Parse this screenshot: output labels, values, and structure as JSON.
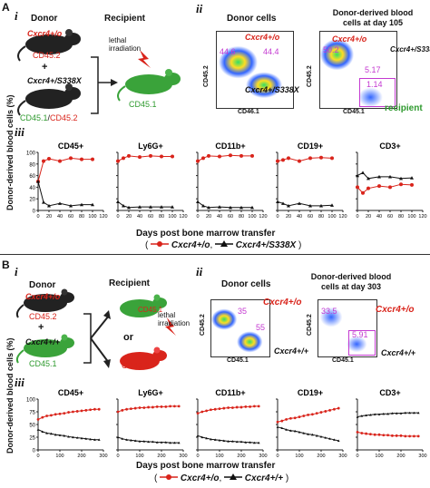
{
  "panelA": {
    "letter": "A",
    "sub_i": "i",
    "sub_ii": "ii",
    "sub_iii": "iii",
    "donor_title": "Donor",
    "recipient_title": "Recipient",
    "donor1_genotype": "Cxcr4+/o",
    "donor1_marker": "CD45.2",
    "plus": "+",
    "donor2_genotype": "Cxcr4+/S338X",
    "donor2_marker_a": "CD45.1",
    "donor2_marker_sep": "/",
    "donor2_marker_b": "CD45.2",
    "lethal1": "lethal",
    "lethal2": "irradiation",
    "recipient_marker": "CD45.1",
    "facs1_title": "Donor cells",
    "facs2_title_1": "Donor-derived blood",
    "facs2_title_2": "cells at day 105",
    "facs1_gate_a": "44.6",
    "facs1_gate_b": "44.4",
    "facs1_label_top": "Cxcr4+/o",
    "facs1_label_bottom": "Cxcr4+/S338X",
    "facs2_gate_a": "50.2",
    "facs2_gate_b": "5.17",
    "facs2_gate_c": "1.14",
    "facs2_label_top": "Cxcr4+/o",
    "facs2_label_right": "Cxcr4+/S338X",
    "facs2_label_recipient": "recipient",
    "facs_ylabel": "CD45.2",
    "facs_xlabel": "CD46.1",
    "facs2_xlabel": "CD45.1",
    "ylabel_1": "Donor-derived",
    "ylabel_2": "blood cells (%)",
    "xlabel": "Days post bone marrow transfer",
    "legend_open": "(",
    "legend_sep": ",",
    "legend_close": ")",
    "legend_red": "Cxcr4+/o",
    "legend_black": "Cxcr4+/S338X"
  },
  "panelB": {
    "letter": "B",
    "sub_i": "i",
    "sub_ii": "ii",
    "sub_iii": "iii",
    "donor_title": "Donor",
    "recipient_title": "Recipient",
    "donor1_genotype": "Cxcr4+/o",
    "donor1_marker": "CD45.2",
    "plus": "+",
    "donor2_genotype": "Cxcr4+/+",
    "donor2_marker": "CD45.1",
    "or": "or",
    "rec1_marker": "CD45.1",
    "rec2_marker": "CD45.2",
    "lethal1": "lethal",
    "lethal2": "irradiation",
    "facs1_title": "Donor cells",
    "facs2_title_1": "Donor-derived blood",
    "facs2_title_2": "cells at day 303",
    "facs1_label_top": "Cxcr4+/o",
    "facs1_label_bottom": "Cxcr4+/+",
    "facs1_gate_a": "35",
    "facs1_gate_b": "55",
    "facs2_gate_a": "33.5",
    "facs2_gate_b": "5.91",
    "facs2_label_top": "Cxcr4+/o",
    "facs2_label_bottom": "Cxcr4+/+",
    "facs_ylabel": "CD45.2",
    "facs_xlabel": "CD45.1",
    "ylabel_1": "Donor-derived",
    "ylabel_2": "blood cells (%)",
    "xlabel": "Days post bone marrow transfer",
    "legend_open": "(",
    "legend_sep": ",",
    "legend_close": ")",
    "legend_red": "Cxcr4+/o",
    "legend_black": "Cxcr4+/+"
  },
  "colors": {
    "red": "#d9241b",
    "black": "#111111",
    "green": "#2e9a2e",
    "magenta": "#c43ad1"
  },
  "chart_data": [
    {
      "type": "line",
      "panel": "A-iii",
      "title": "CD45+",
      "x": [
        0,
        10,
        20,
        40,
        60,
        80,
        100
      ],
      "series": [
        {
          "name": "Cxcr4+/o",
          "values": [
            50,
            85,
            89,
            85,
            90,
            88,
            88
          ]
        },
        {
          "name": "Cxcr4+/S338X",
          "values": [
            50,
            14,
            8,
            12,
            8,
            10,
            10
          ]
        }
      ],
      "xlim": [
        0,
        120
      ],
      "ylim": [
        0,
        100
      ],
      "xticks": [
        0,
        20,
        40,
        60,
        80,
        100,
        120
      ],
      "yticks": [
        0,
        20,
        40,
        60,
        80,
        100
      ],
      "ylabel": "Donor-derived blood cells (%)"
    },
    {
      "type": "line",
      "panel": "A-iii",
      "title": "Ly6G+",
      "x": [
        0,
        10,
        20,
        40,
        60,
        80,
        100
      ],
      "series": [
        {
          "name": "Cxcr4+/o",
          "values": [
            85,
            90,
            94,
            92,
            94,
            93,
            93
          ]
        },
        {
          "name": "Cxcr4+/S338X",
          "values": [
            15,
            8,
            5,
            6,
            6,
            6,
            6
          ]
        }
      ],
      "xlim": [
        0,
        120
      ],
      "ylim": [
        0,
        100
      ]
    },
    {
      "type": "line",
      "panel": "A-iii",
      "title": "CD11b+",
      "x": [
        0,
        10,
        20,
        40,
        60,
        80,
        100
      ],
      "series": [
        {
          "name": "Cxcr4+/o",
          "values": [
            85,
            90,
            94,
            93,
            95,
            94,
            94
          ]
        },
        {
          "name": "Cxcr4+/S338X",
          "values": [
            15,
            8,
            5,
            6,
            5,
            5,
            5
          ]
        }
      ],
      "xlim": [
        0,
        120
      ],
      "ylim": [
        0,
        100
      ]
    },
    {
      "type": "line",
      "panel": "A-iii",
      "title": "CD19+",
      "x": [
        0,
        10,
        20,
        40,
        60,
        80,
        100
      ],
      "series": [
        {
          "name": "Cxcr4+/o",
          "values": [
            85,
            87,
            90,
            85,
            90,
            91,
            90
          ]
        },
        {
          "name": "Cxcr4+/S338X",
          "values": [
            15,
            12,
            8,
            12,
            8,
            8,
            9
          ]
        }
      ],
      "xlim": [
        0,
        120
      ],
      "ylim": [
        0,
        100
      ]
    },
    {
      "type": "line",
      "panel": "A-iii",
      "title": "CD3+",
      "x": [
        0,
        10,
        20,
        40,
        60,
        80,
        100
      ],
      "series": [
        {
          "name": "Cxcr4+/o",
          "values": [
            40,
            30,
            38,
            42,
            40,
            45,
            44
          ]
        },
        {
          "name": "Cxcr4+/S338X",
          "values": [
            60,
            65,
            55,
            58,
            58,
            55,
            56
          ]
        }
      ],
      "xlim": [
        0,
        120
      ],
      "ylim": [
        0,
        100
      ]
    },
    {
      "type": "line",
      "panel": "B-iii",
      "title": "CD45+",
      "x": [
        0,
        20,
        40,
        60,
        80,
        100,
        120,
        140,
        160,
        180,
        200,
        220,
        240,
        260,
        280
      ],
      "series": [
        {
          "name": "Cxcr4+/o",
          "values": [
            60,
            64,
            67,
            68,
            70,
            71,
            72,
            74,
            75,
            76,
            77,
            78,
            79,
            80,
            80
          ]
        },
        {
          "name": "Cxcr4+/+",
          "values": [
            40,
            36,
            33,
            32,
            30,
            29,
            28,
            26,
            25,
            24,
            23,
            22,
            21,
            20,
            20
          ]
        }
      ],
      "xlim": [
        0,
        300
      ],
      "ylim": [
        0,
        100
      ],
      "xticks": [
        0,
        100,
        200,
        300
      ],
      "yticks": [
        0,
        25,
        50,
        75,
        100
      ],
      "ylabel": "Donor-derived blood cells (%)"
    },
    {
      "type": "line",
      "panel": "B-iii",
      "title": "Ly6G+",
      "x": [
        0,
        20,
        40,
        60,
        80,
        100,
        120,
        140,
        160,
        180,
        200,
        220,
        240,
        260,
        280
      ],
      "series": [
        {
          "name": "Cxcr4+/o",
          "values": [
            75,
            78,
            80,
            81,
            82,
            83,
            83,
            84,
            84,
            85,
            85,
            85,
            86,
            86,
            86
          ]
        },
        {
          "name": "Cxcr4+/+",
          "values": [
            25,
            22,
            20,
            19,
            18,
            17,
            17,
            16,
            16,
            15,
            15,
            15,
            14,
            14,
            14
          ]
        }
      ],
      "xlim": [
        0,
        300
      ],
      "ylim": [
        0,
        100
      ]
    },
    {
      "type": "line",
      "panel": "B-iii",
      "title": "CD11b+",
      "x": [
        0,
        20,
        40,
        60,
        80,
        100,
        120,
        140,
        160,
        180,
        200,
        220,
        240,
        260,
        280
      ],
      "series": [
        {
          "name": "Cxcr4+/o",
          "values": [
            72,
            75,
            77,
            79,
            80,
            81,
            82,
            83,
            83,
            84,
            84,
            85,
            85,
            86,
            86
          ]
        },
        {
          "name": "Cxcr4+/+",
          "values": [
            28,
            25,
            23,
            21,
            20,
            19,
            18,
            17,
            17,
            16,
            16,
            15,
            15,
            14,
            14
          ]
        }
      ],
      "xlim": [
        0,
        300
      ],
      "ylim": [
        0,
        100
      ]
    },
    {
      "type": "line",
      "panel": "B-iii",
      "title": "CD19+",
      "x": [
        0,
        20,
        40,
        60,
        80,
        100,
        120,
        140,
        160,
        180,
        200,
        220,
        240,
        260,
        280
      ],
      "series": [
        {
          "name": "Cxcr4+/o",
          "values": [
            55,
            57,
            60,
            62,
            63,
            65,
            67,
            69,
            70,
            72,
            74,
            76,
            78,
            80,
            82
          ]
        },
        {
          "name": "Cxcr4+/+",
          "values": [
            45,
            43,
            40,
            38,
            37,
            35,
            33,
            31,
            30,
            28,
            26,
            24,
            22,
            20,
            18
          ]
        }
      ],
      "xlim": [
        0,
        300
      ],
      "ylim": [
        0,
        100
      ]
    },
    {
      "type": "line",
      "panel": "B-iii",
      "title": "CD3+",
      "x": [
        0,
        20,
        40,
        60,
        80,
        100,
        120,
        140,
        160,
        180,
        200,
        220,
        240,
        260,
        280
      ],
      "series": [
        {
          "name": "Cxcr4+/o",
          "values": [
            35,
            33,
            32,
            31,
            30,
            30,
            29,
            29,
            28,
            28,
            28,
            27,
            27,
            27,
            27
          ]
        },
        {
          "name": "Cxcr4+/+",
          "values": [
            65,
            67,
            68,
            69,
            70,
            70,
            71,
            71,
            72,
            72,
            72,
            73,
            73,
            73,
            73
          ]
        }
      ],
      "xlim": [
        0,
        300
      ],
      "ylim": [
        0,
        100
      ]
    }
  ]
}
